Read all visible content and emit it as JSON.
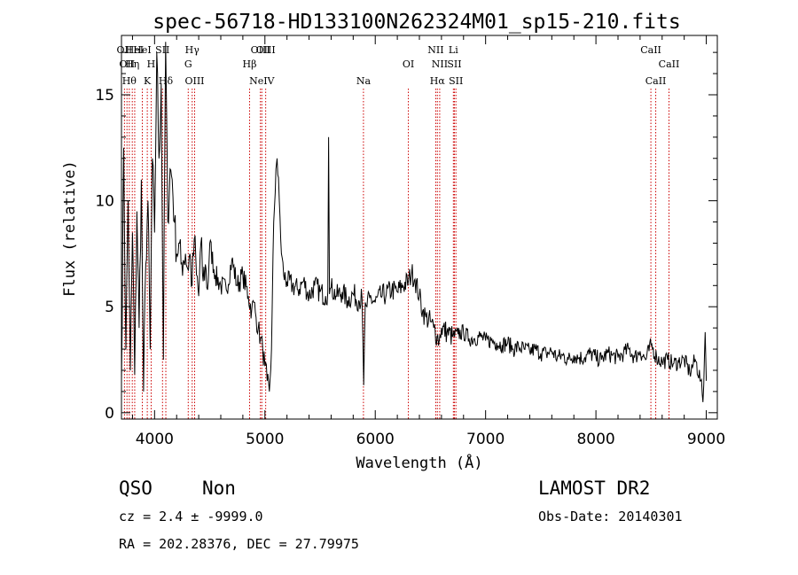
{
  "chart_data": {
    "type": "line",
    "title": "spec-56718-HD133100N262324M01_sp15-210.fits",
    "xlabel": "Wavelength (Å)",
    "ylabel": "Flux (relative)",
    "xlim": [
      3700,
      9100
    ],
    "ylim": [
      -0.3,
      17.8
    ],
    "x_ticks": [
      4000,
      5000,
      6000,
      7000,
      8000,
      9000
    ],
    "y_ticks": [
      0,
      5,
      10,
      15
    ],
    "x_tick_labels": [
      "4000",
      "5000",
      "6000",
      "7000",
      "8000",
      "9000"
    ],
    "y_tick_labels": [
      "0",
      "5",
      "10",
      "15"
    ],
    "line_color": "#000000",
    "marker_color": "#cc0000",
    "series": [
      {
        "x": [
          3700,
          3720,
          3740,
          3760,
          3780,
          3800,
          3820,
          3840,
          3860,
          3880,
          3900,
          3920,
          3940,
          3960,
          3980,
          4000,
          4020,
          4040,
          4060,
          4080,
          4100,
          4120,
          4140,
          4160,
          4180,
          4200,
          4220,
          4240,
          4260,
          4280,
          4300,
          4320,
          4340,
          4360,
          4380,
          4400,
          4420,
          4440,
          4460,
          4480,
          4500,
          4550,
          4600,
          4650,
          4700,
          4750,
          4800,
          4850,
          4880,
          4900,
          4920,
          4940,
          4960,
          4980,
          5000,
          5020,
          5040,
          5060,
          5080,
          5100,
          5110,
          5130,
          5150,
          5170,
          5200,
          5250,
          5300,
          5350,
          5400,
          5450,
          5500,
          5550,
          5570,
          5577,
          5585,
          5600,
          5650,
          5700,
          5750,
          5800,
          5850,
          5880,
          5895,
          5910,
          5925,
          5950,
          6000,
          6050,
          6100,
          6150,
          6200,
          6250,
          6300,
          6330,
          6360,
          6400,
          6430,
          6460,
          6500,
          6530,
          6560,
          6580,
          6600,
          6650,
          6700,
          6750,
          6800,
          6850,
          6900,
          6950,
          7000,
          7050,
          7100,
          7150,
          7200,
          7250,
          7300,
          7350,
          7400,
          7450,
          7500,
          7550,
          7600,
          7650,
          7700,
          7750,
          7800,
          7850,
          7900,
          7950,
          8000,
          8050,
          8100,
          8150,
          8200,
          8250,
          8300,
          8350,
          8400,
          8450,
          8500,
          8550,
          8600,
          8650,
          8700,
          8750,
          8800,
          8850,
          8900,
          8950,
          8970,
          8990,
          9000
        ],
        "y": [
          1.5,
          12.5,
          3.0,
          10.0,
          2.0,
          8.5,
          1.8,
          9.5,
          4.0,
          11.0,
          1.0,
          7.0,
          10.0,
          3.0,
          12.0,
          8.5,
          17.0,
          12.0,
          15.5,
          2.5,
          17.5,
          9.0,
          11.5,
          11.0,
          9.0,
          7.5,
          8.0,
          7.0,
          7.2,
          7.5,
          6.8,
          7.5,
          6.0,
          8.2,
          6.5,
          5.5,
          8.0,
          6.2,
          7.0,
          5.8,
          8.0,
          6.5,
          6.0,
          5.8,
          7.2,
          6.0,
          6.5,
          5.5,
          4.8,
          5.2,
          4.5,
          4.0,
          3.5,
          3.0,
          2.2,
          1.5,
          1.0,
          3.0,
          9.0,
          11.5,
          12.0,
          10.0,
          7.5,
          6.5,
          6.2,
          6.0,
          5.8,
          6.2,
          5.5,
          6.0,
          5.7,
          5.5,
          5.7,
          13.0,
          5.6,
          5.9,
          5.5,
          5.7,
          5.3,
          5.6,
          5.3,
          5.4,
          1.3,
          5.2,
          5.0,
          5.4,
          5.2,
          5.5,
          5.6,
          5.8,
          5.7,
          6.0,
          6.2,
          6.6,
          6.3,
          5.5,
          4.8,
          4.5,
          4.3,
          4.0,
          3.6,
          3.4,
          4.0,
          3.8,
          3.6,
          3.7,
          3.8,
          3.5,
          3.5,
          3.6,
          3.4,
          3.4,
          3.3,
          3.2,
          3.3,
          3.0,
          3.1,
          3.0,
          2.9,
          3.0,
          2.8,
          2.8,
          2.9,
          2.6,
          2.7,
          2.5,
          2.7,
          2.6,
          2.6,
          2.8,
          2.6,
          2.5,
          2.8,
          2.7,
          2.6,
          2.8,
          3.0,
          2.6,
          2.9,
          2.5,
          3.2,
          2.6,
          2.4,
          2.5,
          2.3,
          2.4,
          2.5,
          1.9,
          2.5,
          1.5,
          0.5,
          3.8,
          1.5
        ]
      }
    ],
    "spectral_lines": [
      {
        "wl": 3727,
        "label": "OII",
        "row": 0
      },
      {
        "wl": 3750,
        "label": "OII",
        "row": 1
      },
      {
        "wl": 3771,
        "label": "Hθ",
        "row": 2
      },
      {
        "wl": 3798,
        "label": "Hη",
        "row": 1
      },
      {
        "wl": 3820,
        "label": "HeI",
        "row": 0
      },
      {
        "wl": 3889,
        "label": "HeI",
        "row": 0
      },
      {
        "wl": 3934,
        "label": "K",
        "row": 2
      },
      {
        "wl": 3969,
        "label": "H",
        "row": 1
      },
      {
        "wl": 4072,
        "label": "SII",
        "row": 0
      },
      {
        "wl": 4102,
        "label": "Hδ",
        "row": 2
      },
      {
        "wl": 4305,
        "label": "G",
        "row": 1
      },
      {
        "wl": 4341,
        "label": "Hγ",
        "row": 0
      },
      {
        "wl": 4363,
        "label": "OIII",
        "row": 2
      },
      {
        "wl": 4861,
        "label": "Hβ",
        "row": 1
      },
      {
        "wl": 4959,
        "label": "OIII",
        "row": 0
      },
      {
        "wl": 4972,
        "label": "NeIV",
        "row": 2
      },
      {
        "wl": 5007,
        "label": "OIII",
        "row": 0
      },
      {
        "wl": 5893,
        "label": "Na",
        "row": 2
      },
      {
        "wl": 6300,
        "label": "OI",
        "row": 1
      },
      {
        "wl": 6548,
        "label": "NII",
        "row": 0
      },
      {
        "wl": 6563,
        "label": "Hα",
        "row": 2
      },
      {
        "wl": 6584,
        "label": "NII",
        "row": 1
      },
      {
        "wl": 6708,
        "label": "Li",
        "row": 0
      },
      {
        "wl": 6717,
        "label": "SII",
        "row": 1
      },
      {
        "wl": 6731,
        "label": "SII",
        "row": 2
      },
      {
        "wl": 8498,
        "label": "CaII",
        "row": 0
      },
      {
        "wl": 8542,
        "label": "CaII",
        "row": 2
      },
      {
        "wl": 8662,
        "label": "CaII",
        "row": 1
      }
    ]
  },
  "info": {
    "class": "QSO",
    "subclass": "Non",
    "cz": "cz = 2.4 ± -9999.0",
    "radec": "RA = 202.28376, DEC =  27.79975",
    "survey": "LAMOST DR2",
    "obs_date": "Obs-Date: 20140301"
  }
}
